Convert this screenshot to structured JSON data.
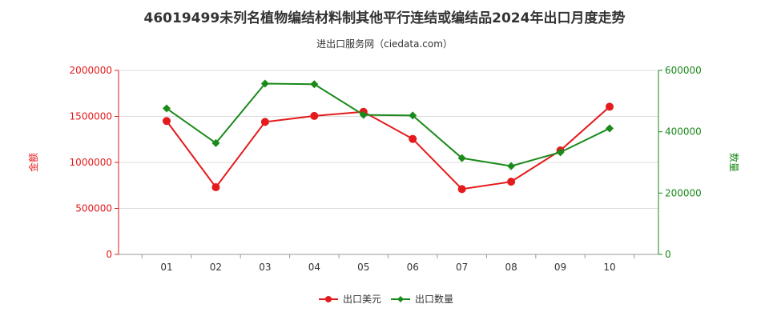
{
  "chart_data": {
    "type": "line",
    "title": "46019499未列名植物编结材料制其他平行连结或编结品2024年出口月度走势",
    "subtitle": "进出口服务网（ciedata.com）",
    "categories": [
      "01",
      "02",
      "03",
      "04",
      "05",
      "06",
      "07",
      "08",
      "09",
      "10"
    ],
    "y_left": {
      "label": "金额",
      "range": [
        0,
        2000000
      ],
      "ticks": [
        "0",
        "500000",
        "1000000",
        "1500000",
        "2000000"
      ],
      "color": "#e41a1c"
    },
    "y_right": {
      "label": "数量",
      "range": [
        0,
        600000
      ],
      "ticks": [
        "0",
        "200000",
        "400000",
        "600000"
      ],
      "color": "#1a8a1a"
    },
    "series": [
      {
        "name": "出口美元",
        "axis": "left",
        "color": "#e41a1c",
        "values": [
          1450000,
          730000,
          1440000,
          1505000,
          1550000,
          1255000,
          710000,
          790000,
          1130000,
          1605000
        ]
      },
      {
        "name": "出口数量",
        "axis": "right",
        "color": "#1a8a1a",
        "values": [
          476000,
          363000,
          557000,
          555000,
          455000,
          453000,
          314000,
          288000,
          333000,
          411000
        ]
      }
    ],
    "legend_position": "bottom-center",
    "grid": "horizontal"
  }
}
